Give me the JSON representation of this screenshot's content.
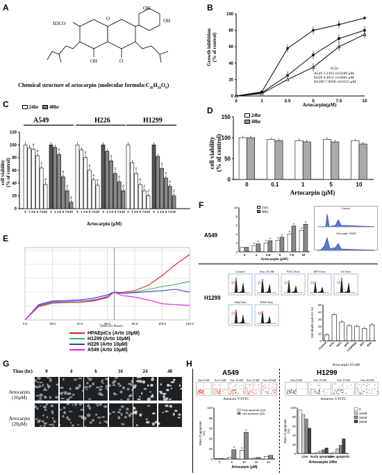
{
  "panels": {
    "A": {
      "letter": "A",
      "caption": "Chemical structure of artocarpin (molecular formula:C",
      "formula_sub_26": "26",
      "formula_h": "H",
      "formula_sub_28": "28",
      "formula_o": "O",
      "formula_sub_6": "6",
      "formula_close": ")",
      "labels": {
        "oh1": "OH",
        "oh2": "OH",
        "h3co": "H3CO",
        "o_ring": "O",
        "o_ketone": "O",
        "oh_bottom": "OH"
      }
    },
    "B": {
      "letter": "B",
      "ylabel": "Growth inhibition\n(% of control)",
      "xlabel": "Artocarpin(μM)",
      "ic50_header": "IC50",
      "legend": [
        {
          "name": "A549",
          "ic50": "3.1303 ±0.0189 μM"
        },
        {
          "name": "H226",
          "ic50": "6.4012 ±0.0082 μM"
        },
        {
          "name": "H1299",
          "ic50": "7.9690 ±0.0153 μM"
        }
      ]
    },
    "C": {
      "letter": "C",
      "legend": [
        "24hr",
        "48hr"
      ],
      "groups": [
        "A549",
        "H226",
        "H1299"
      ],
      "ylabel": "cell viability\n(% of control)",
      "xlabel": "Artocarpin (μM)",
      "dose_labels": "0 1 2.5 5 7.5 10"
    },
    "D": {
      "letter": "D",
      "legend": [
        "24hr",
        "48hr"
      ],
      "ylabel": "cell viability\n(% of control)",
      "xlabel": "Artocarpin (μM)"
    },
    "E": {
      "letter": "E",
      "xlabel": "Time (in Hour)",
      "legend": [
        {
          "name": "HPAEpiCs (Arto 10μM)",
          "color": "#e8191f"
        },
        {
          "name": "H1299 (Arto 10μM)",
          "color": "#39b54a"
        },
        {
          "name": "H226 (Arto 10μM)",
          "color": "#2b39c9"
        },
        {
          "name": "A549 (Arto 10μM)",
          "color": "#e31fe0"
        }
      ],
      "xticks": [
        "0.0",
        "20.0",
        "40.0",
        "60.0",
        "80.0",
        "100.0",
        "120.0"
      ]
    },
    "F": {
      "letter": "F",
      "a549_label": "A549",
      "h1299_label": "H1299",
      "legend": [
        "24hr",
        "48hr"
      ],
      "ylabel": "Enhancement of apoptosis\n(fold of control)",
      "xlabel": "Artocarpin (μM)",
      "flow_titles": [
        "Control",
        "Arto 10 nM",
        "NAC/Arto",
        "APO/Arto",
        "LY/Arto",
        "Akti/Arto",
        "BAY/Arto"
      ],
      "bar_ylabel": "Cell death (sub-G1 %)",
      "bar_xlabels": [
        "Control",
        "Arto",
        "NAC",
        "APO",
        "LY294002",
        "Akti",
        "BAY"
      ],
      "bar_footer": "Artocarpin 10 nM",
      "inset_titles": [
        "Control",
        "Artocarpin 10nM"
      ]
    },
    "G": {
      "letter": "G",
      "time_label": "Time (hr)",
      "times": [
        "0",
        "4",
        "6",
        "16",
        "24",
        "48"
      ],
      "rows": [
        "Artocarpin\n(10μM)",
        "Artocarpin\n(20μM)"
      ]
    },
    "H": {
      "letter": "H",
      "a549_title": "A549",
      "h1299_title": "H1299",
      "a549_flow_titles": [
        "Arto 0 nM",
        "Arto 5 nM",
        "Arto 10 nM",
        "Arto 15 nM",
        "Arto 20 nM"
      ],
      "h1299_flow_titles": [
        "Arto 0 nM",
        "Arto 10 nM",
        "Arto 15 nM",
        "Arto 20 nM"
      ],
      "annexin_label": "Annexin V-FITC",
      "a549_ylabel": "Rate of apoptosis\n(%)",
      "a549_legend": [
        "Early apoptosis (Q4)",
        "Late apoptosis (Q2)"
      ],
      "a549_xlabel": "Artocarpin (μM)",
      "h1299_ylabel": "Rate of apoptosis\n(%)",
      "h1299_legend": [
        "0",
        "10nM",
        "15nM",
        "20nM"
      ],
      "h1299_xlabels": [
        "Live",
        "Early apoptotic",
        "Late apoptotic"
      ],
      "h1299_xlabel": "Artocarpin 24hr"
    }
  },
  "chart_data": [
    {
      "panel": "B",
      "type": "line",
      "categories": [
        "0",
        "1",
        "2.5",
        "5",
        "7.5",
        "10"
      ],
      "series": [
        {
          "name": "A549",
          "values": [
            0,
            5,
            58,
            80,
            87,
            95
          ]
        },
        {
          "name": "H226",
          "values": [
            0,
            4,
            25,
            50,
            70,
            80
          ]
        },
        {
          "name": "H1299",
          "values": [
            0,
            3,
            20,
            35,
            60,
            75
          ]
        }
      ],
      "ylim": [
        0,
        100
      ],
      "yticks": [
        0,
        20,
        40,
        60,
        80,
        100
      ],
      "xlabel": "Artocarpin(μM)",
      "ylabel": "Growth inhibition (% of control)"
    },
    {
      "panel": "C",
      "type": "bar",
      "categories": [
        "0",
        "1",
        "2.5",
        "5",
        "7.5",
        "10"
      ],
      "groups": [
        {
          "name": "A549",
          "series": [
            {
              "name": "24hr",
              "values": [
                100,
                95,
                93,
                83,
                64,
                38
              ]
            },
            {
              "name": "48hr",
              "values": [
                100,
                96,
                85,
                50,
                28,
                10
              ]
            }
          ]
        },
        {
          "name": "H226",
          "series": [
            {
              "name": "24hr",
              "values": [
                100,
                92,
                80,
                60,
                45,
                37
              ]
            },
            {
              "name": "48hr",
              "values": [
                100,
                90,
                75,
                55,
                42,
                28
              ]
            }
          ]
        },
        {
          "name": "H1299",
          "series": [
            {
              "name": "24hr",
              "values": [
                100,
                72,
                55,
                38,
                28,
                20
              ]
            },
            {
              "name": "48hr",
              "values": [
                100,
                82,
                63,
                48,
                35,
                20
              ]
            }
          ]
        }
      ],
      "ylim": [
        0,
        120
      ],
      "yticks": [
        0,
        20,
        40,
        60,
        80,
        100,
        120
      ],
      "xlabel": "Artocarpin (μM)",
      "ylabel": "cell viability (% of control)"
    },
    {
      "panel": "D",
      "type": "bar",
      "categories": [
        "0",
        "0.1",
        "1",
        "5",
        "10"
      ],
      "series": [
        {
          "name": "24hr",
          "values": [
            100,
            96,
            93,
            96,
            93
          ]
        },
        {
          "name": "48hr",
          "values": [
            100,
            93,
            90,
            90,
            85
          ]
        }
      ],
      "ylim": [
        0,
        150
      ],
      "yticks": [
        0,
        50,
        100,
        150
      ],
      "xlabel": "Artocarpin (μM)",
      "ylabel": "cell viability (% of control)"
    },
    {
      "panel": "E",
      "type": "line",
      "x": [
        0,
        10,
        20,
        30,
        40,
        50,
        60,
        65,
        70,
        80,
        90,
        100,
        110,
        120
      ],
      "series": [
        {
          "name": "HPAEpiCs (Arto 10μM)",
          "values": [
            0.0,
            0.48,
            0.6,
            0.62,
            0.63,
            0.68,
            0.8,
            1.0,
            0.98,
            1.05,
            1.25,
            1.6,
            2.0,
            2.35
          ]
        },
        {
          "name": "H1299 (Arto 10μM)",
          "values": [
            0.0,
            0.5,
            0.62,
            0.63,
            0.64,
            0.7,
            0.85,
            1.0,
            0.95,
            1.0,
            1.1,
            1.2,
            1.28,
            1.38
          ]
        },
        {
          "name": "H226 (Arto 10μM)",
          "values": [
            0.0,
            0.55,
            0.68,
            0.7,
            0.72,
            0.78,
            0.9,
            1.0,
            0.95,
            0.98,
            1.02,
            1.05,
            1.1,
            1.0
          ]
        },
        {
          "name": "A549 (Arto 10μM)",
          "values": [
            0.0,
            0.52,
            0.65,
            0.66,
            0.68,
            0.72,
            0.82,
            1.0,
            0.88,
            0.82,
            0.72,
            0.58,
            0.55,
            0.52
          ]
        }
      ],
      "xlabel": "Time (in Hour)",
      "xticks": [
        "0.0",
        "20.0",
        "40.0",
        "60.0",
        "80.0",
        "100.0",
        "120.0"
      ]
    },
    {
      "panel": "F-A549",
      "type": "bar",
      "categories": [
        "0",
        "1",
        "2.5",
        "5",
        "7.5",
        "10"
      ],
      "series": [
        {
          "name": "24hr",
          "values": [
            1.0,
            1.4,
            2.0,
            2.6,
            4.0,
            4.8
          ]
        },
        {
          "name": "48hr",
          "values": [
            1.0,
            1.8,
            2.5,
            3.3,
            5.8,
            6.2
          ]
        }
      ],
      "ylim": [
        0,
        10
      ],
      "yticks": [
        0,
        2,
        4,
        6,
        8,
        10
      ]
    },
    {
      "panel": "F-H1299",
      "type": "bar",
      "categories": [
        "Control",
        "Arto",
        "NAC",
        "APO",
        "LY294002",
        "Akti",
        "BAY"
      ],
      "values": [
        8,
        36,
        26,
        21,
        20,
        17,
        22
      ],
      "ylim": [
        0,
        50
      ],
      "yticks": [
        0,
        10,
        20,
        30,
        40,
        50
      ]
    },
    {
      "panel": "H-A549",
      "type": "bar",
      "categories": [
        "0",
        "5",
        "10",
        "15",
        "20"
      ],
      "series": [
        {
          "name": "Early apoptosis (Q4)",
          "values": [
            1,
            3,
            17,
            2,
            5
          ]
        },
        {
          "name": "Late apoptosis (Q2)",
          "values": [
            1,
            18,
            52,
            3,
            7
          ]
        }
      ],
      "ylim": [
        0,
        100
      ],
      "yticks": [
        0,
        20,
        40,
        60,
        80,
        100
      ]
    },
    {
      "panel": "H-H1299",
      "type": "bar",
      "categories": [
        "Live",
        "Early apoptotic",
        "Late apoptotic"
      ],
      "series": [
        {
          "name": "0",
          "values": [
            95,
            2,
            3
          ]
        },
        {
          "name": "10nM",
          "values": [
            85,
            5,
            10
          ]
        },
        {
          "name": "15nM",
          "values": [
            75,
            8,
            18
          ]
        },
        {
          "name": "20nM",
          "values": [
            55,
            12,
            32
          ]
        }
      ],
      "ylim": [
        0,
        100
      ],
      "yticks": [
        0,
        20,
        40,
        60,
        80,
        100
      ]
    }
  ]
}
